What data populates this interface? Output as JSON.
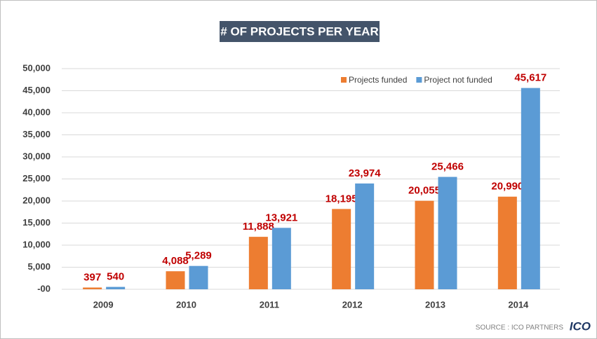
{
  "chart_data": {
    "type": "bar",
    "title": "# OF PROJECTS PER YEAR",
    "categories": [
      "2009",
      "2010",
      "2011",
      "2012",
      "2013",
      "2014"
    ],
    "series": [
      {
        "name": "Projects funded",
        "color": "#ed7d31",
        "values": [
          397,
          4088,
          11888,
          18195,
          20055,
          20990
        ],
        "value_labels": [
          "397",
          "4,088",
          "11,888",
          "18,195",
          "20,055",
          "20,990"
        ]
      },
      {
        "name": "Project not funded",
        "color": "#5b9bd5",
        "values": [
          540,
          5289,
          13921,
          23974,
          25466,
          45617
        ],
        "value_labels": [
          "540",
          "5,289",
          "13,921",
          "23,974",
          "25,466",
          "45,617"
        ]
      }
    ],
    "ylim": [
      0,
      50000
    ],
    "yticks": [
      {
        "value": 0,
        "label": "-00"
      },
      {
        "value": 5000,
        "label": "5,000"
      },
      {
        "value": 10000,
        "label": "10,000"
      },
      {
        "value": 15000,
        "label": "15,000"
      },
      {
        "value": 20000,
        "label": "20,000"
      },
      {
        "value": 25000,
        "label": "25,000"
      },
      {
        "value": 30000,
        "label": "30,000"
      },
      {
        "value": 35000,
        "label": "35,000"
      },
      {
        "value": 40000,
        "label": "40,000"
      },
      {
        "value": 45000,
        "label": "45,000"
      },
      {
        "value": 50000,
        "label": "50,000"
      }
    ],
    "grid": true,
    "legend": "top-right",
    "source": "SOURCE : ICO PARTNERS",
    "logo": "ICO"
  }
}
